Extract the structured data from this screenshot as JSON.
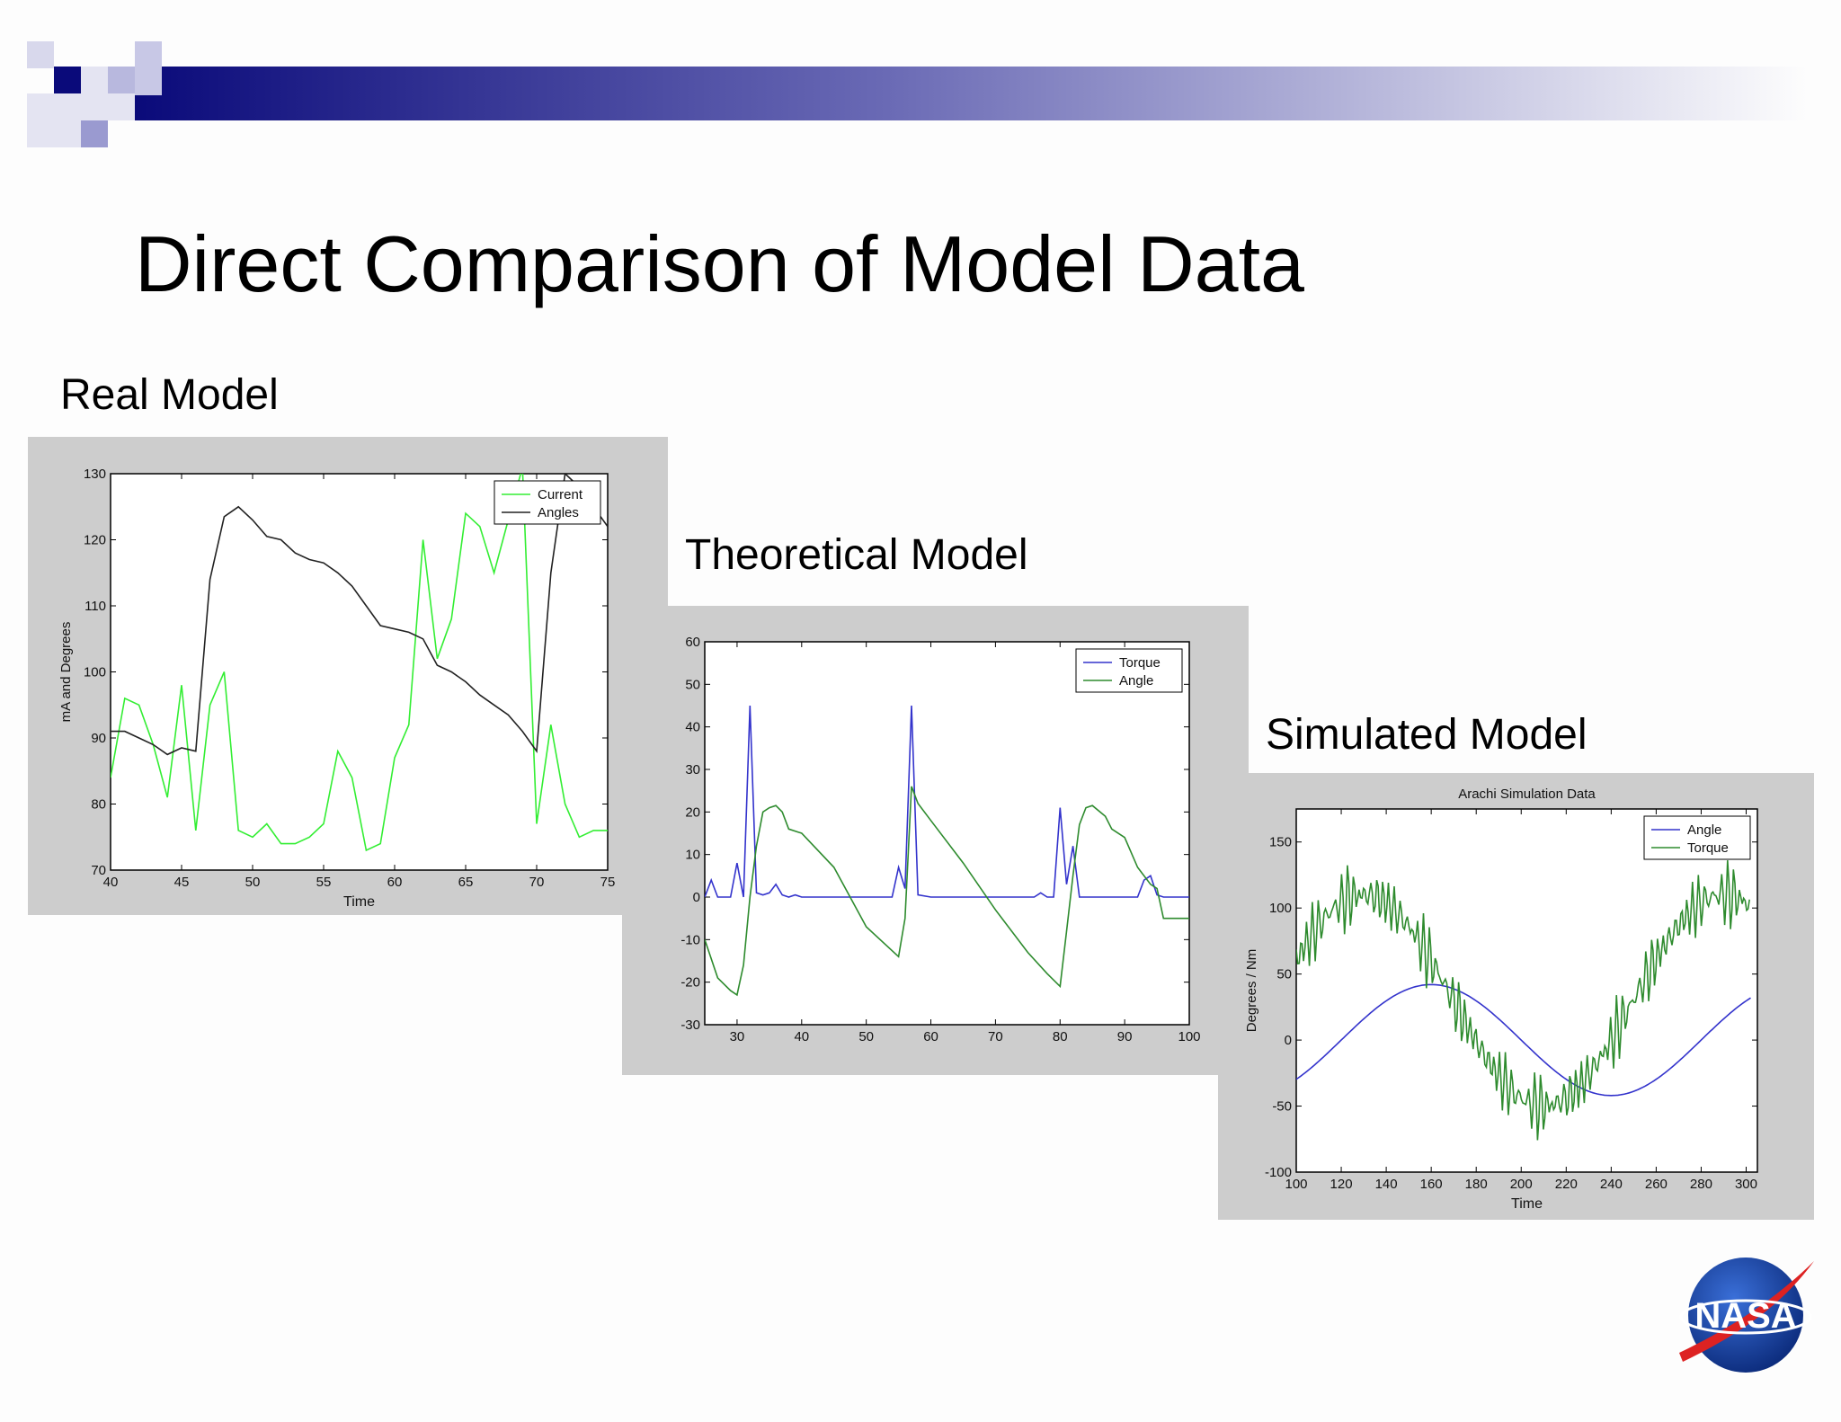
{
  "slide": {
    "title": "Direct Comparison of Model Data",
    "labels": {
      "real": "Real Model",
      "theoretical": "Theoretical Model",
      "simulated": "Simulated Model"
    },
    "logo_text": "NASA"
  },
  "colors": {
    "green": "#33ee33",
    "black": "#222222",
    "blue": "#3333cc",
    "dark_green": "#2e8b2e",
    "panel": "#cdcdcd",
    "banner": "#0a0a7a"
  },
  "chart_data": [
    {
      "type": "line",
      "title": "",
      "xlabel": "Time",
      "ylabel": "mA and Degrees",
      "xlim": [
        40,
        75
      ],
      "ylim": [
        70,
        130
      ],
      "xticks": [
        40,
        45,
        50,
        55,
        60,
        65,
        70,
        75
      ],
      "yticks": [
        70,
        80,
        90,
        100,
        110,
        120,
        130
      ],
      "legend": "top-right",
      "series": [
        {
          "name": "Current",
          "color": "#33ee33",
          "x": [
            40,
            41,
            42,
            43,
            44,
            45,
            46,
            47,
            48,
            49,
            50,
            51,
            52,
            53,
            54,
            55,
            56,
            57,
            58,
            59,
            60,
            61,
            62,
            63,
            64,
            65,
            66,
            67,
            68,
            69,
            70,
            71,
            72,
            73,
            74,
            75
          ],
          "y": [
            84,
            96,
            95,
            89,
            81,
            98,
            76,
            95,
            100,
            76,
            75,
            77,
            74,
            74,
            75,
            77,
            88,
            84,
            73,
            74,
            87,
            92,
            120,
            102,
            108,
            124,
            122,
            115,
            123,
            131,
            77,
            92,
            80,
            75,
            76,
            76
          ]
        },
        {
          "name": "Angles",
          "color": "#222222",
          "x": [
            40,
            41,
            42,
            43,
            44,
            45,
            46,
            47,
            48,
            49,
            50,
            51,
            52,
            53,
            54,
            55,
            56,
            57,
            58,
            59,
            60,
            61,
            62,
            63,
            64,
            65,
            66,
            67,
            68,
            69,
            70,
            71,
            72,
            73,
            74,
            75
          ],
          "y": [
            91,
            91,
            90,
            89,
            87.5,
            88.5,
            88,
            114,
            123.5,
            125,
            123,
            120.5,
            120,
            118,
            117,
            116.5,
            115,
            113,
            110,
            107,
            106.5,
            106,
            105,
            101,
            100,
            98.5,
            96.5,
            95,
            93.5,
            91,
            88,
            115,
            130,
            128,
            125,
            122
          ]
        }
      ]
    },
    {
      "type": "line",
      "title": "",
      "xlabel": "",
      "ylabel": "",
      "xlim": [
        25,
        100
      ],
      "ylim": [
        -30,
        60
      ],
      "xticks": [
        30,
        40,
        50,
        60,
        70,
        80,
        90,
        100
      ],
      "yticks": [
        -30,
        -20,
        -10,
        0,
        10,
        20,
        30,
        40,
        50,
        60
      ],
      "legend": "top-right",
      "series": [
        {
          "name": "Torque",
          "color": "#3333cc",
          "x": [
            25,
            26,
            27,
            28,
            29,
            30,
            31,
            32,
            33,
            34,
            35,
            36,
            37,
            38,
            39,
            40,
            45,
            50,
            54,
            55,
            56,
            57,
            58,
            60,
            70,
            76,
            77,
            78,
            79,
            80,
            81,
            82,
            83,
            90,
            92,
            93,
            94,
            95,
            96,
            100
          ],
          "y": [
            0,
            4,
            0,
            0,
            0,
            8,
            0,
            45,
            1,
            0.5,
            1,
            3,
            0.5,
            0,
            0.5,
            0,
            0,
            0,
            0,
            7,
            2,
            45,
            0.5,
            0,
            0,
            0,
            1,
            0,
            0,
            21,
            3,
            12,
            0,
            0,
            0,
            4,
            5,
            0.5,
            0,
            0
          ]
        },
        {
          "name": "Angle",
          "color": "#2e8b2e",
          "x": [
            25,
            27,
            29,
            30,
            31,
            32,
            33,
            34,
            35,
            36,
            37,
            38,
            40,
            45,
            50,
            55,
            56,
            57,
            58,
            60,
            65,
            70,
            75,
            78,
            80,
            81,
            82,
            83,
            84,
            85,
            87,
            88,
            90,
            92,
            94,
            95,
            96,
            97,
            98,
            100
          ],
          "y": [
            -10,
            -19,
            -22,
            -23,
            -16,
            0,
            12,
            20,
            21,
            21.5,
            20,
            16,
            15,
            7,
            -7,
            -14,
            -5,
            26,
            22,
            18,
            8,
            -3,
            -13,
            -18,
            -21,
            -8,
            5,
            17,
            21,
            21.5,
            19,
            16,
            14,
            7,
            3,
            2,
            -5,
            -5,
            -5,
            -5
          ]
        }
      ]
    },
    {
      "type": "line",
      "title": "Arachi Simulation Data",
      "xlabel": "Time",
      "ylabel": "Degrees / Nm",
      "xlim": [
        100,
        305
      ],
      "ylim": [
        -100,
        175
      ],
      "xticks": [
        100,
        120,
        140,
        160,
        180,
        200,
        220,
        240,
        260,
        280,
        300
      ],
      "yticks": [
        -100,
        -50,
        0,
        50,
        100,
        150
      ],
      "legend": "top-right",
      "series": [
        {
          "name": "Angle",
          "color": "#3333cc",
          "kind": "sine",
          "amplitude": 42,
          "period": 160,
          "phase_x": 200,
          "sign": -1
        },
        {
          "name": "Torque",
          "color": "#2e8b2e",
          "kind": "noisy-sine",
          "offset": 30,
          "amplitude": 80,
          "period": 160,
          "noise": 22,
          "noise_period": 2.6
        }
      ]
    }
  ]
}
